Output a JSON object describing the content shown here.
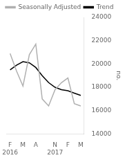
{
  "chart_data": {
    "type": "line",
    "ylabel": "no.",
    "categories": [
      "F",
      null,
      "M",
      null,
      "A",
      null,
      null,
      "N",
      null,
      "F",
      null,
      "M"
    ],
    "annotations": [
      {
        "text": "2016",
        "x": 0
      },
      {
        "text": "2017",
        "x": 7
      }
    ],
    "series": [
      {
        "name": "Seasonally Adjusted",
        "color": "#b0b0b0",
        "values": [
          20900,
          19400,
          18100,
          20800,
          21700,
          17000,
          16400,
          17800,
          18400,
          18800,
          16600,
          16400
        ]
      },
      {
        "name": "Trend",
        "color": "#000000",
        "values": [
          19500,
          19900,
          20200,
          20100,
          19700,
          19000,
          18400,
          18000,
          17800,
          17700,
          17500,
          17300
        ]
      }
    ],
    "ylim": [
      14000,
      24000
    ],
    "yticks": [
      14000,
      16000,
      18000,
      20000,
      22000,
      24000
    ],
    "grid": false,
    "legend": "upper left"
  }
}
